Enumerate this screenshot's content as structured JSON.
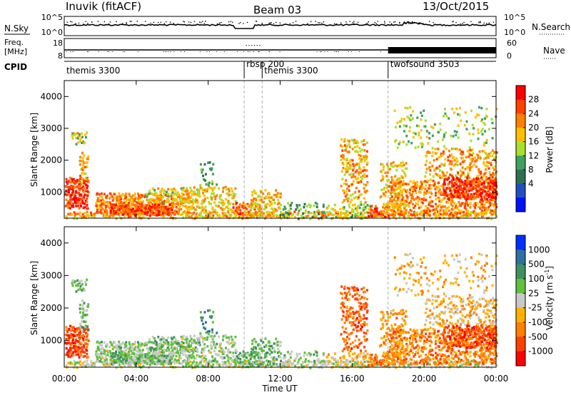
{
  "header": {
    "radar": "Inuvik (fitACF)",
    "beam": "Beam 03",
    "date": "13/Oct/2015"
  },
  "nsky_panel": {
    "left_label": "N.Sky",
    "right_label": "N.Search",
    "left_ticks": [
      "10^5",
      "10^0"
    ],
    "right_ticks": [
      "10^5",
      "10^0"
    ]
  },
  "freq_panel": {
    "left_label": "Freq.",
    "left_unit": "[MHz]",
    "right_label": "Nave",
    "left_ticks": [
      "18",
      "8"
    ],
    "right_ticks": [
      "60",
      "0"
    ]
  },
  "cpid_panel": {
    "label": "CPID",
    "segments": [
      {
        "label": "themis 3300",
        "start_hr": 0
      },
      {
        "label": "rbsp 200",
        "start_hr": 10
      },
      {
        "label": "themis 3300",
        "start_hr": 11
      },
      {
        "label": "twofsound 3503",
        "start_hr": 18
      }
    ]
  },
  "power_panel": {
    "ylabel": "Slant Range [km]",
    "yticks": [
      "4000",
      "3000",
      "2000",
      "1000"
    ],
    "cbar_label": "Power [dB]",
    "cbar_ticks": [
      "28",
      "24",
      "20",
      "16",
      "12",
      "8",
      "4"
    ],
    "cbar_colors": [
      "#ff0000",
      "#ff4000",
      "#ff8000",
      "#ffbf00",
      "#a8e030",
      "#40a060",
      "#307050",
      "#2050c0",
      "#0010ff"
    ]
  },
  "velocity_panel": {
    "ylabel": "Slant Range [km]",
    "yticks": [
      "4000",
      "3000",
      "2000",
      "1000"
    ],
    "cbar_label": "Velocity [m s",
    "cbar_label_sup": "-1",
    "cbar_label_end": "]",
    "cbar_ticks": [
      "1000",
      "500",
      "100",
      "25",
      "-25",
      "-100",
      "-500",
      "-1000"
    ],
    "cbar_colors": [
      "#0030ff",
      "#3070a0",
      "#409060",
      "#60c040",
      "#c8c8c8",
      "#ffb000",
      "#ff8000",
      "#ff4000",
      "#ff0000"
    ]
  },
  "xaxis": {
    "label": "Time UT",
    "ticks": [
      "00:00",
      "04:00",
      "08:00",
      "12:00",
      "16:00",
      "20:00",
      "00:00"
    ]
  },
  "chart_data": {
    "type": "heatmap",
    "title": "Inuvik (fitACF) Beam 03 13/Oct/2015",
    "xlabel": "Time UT",
    "ylabel": "Slant Range [km]",
    "xlim_hours": [
      0,
      24
    ],
    "ylim_km": [
      180,
      4500
    ],
    "panels": [
      "Power [dB]",
      "Velocity [m s-1]"
    ],
    "cpid_switch_hours": [
      10,
      11,
      18
    ]
  }
}
